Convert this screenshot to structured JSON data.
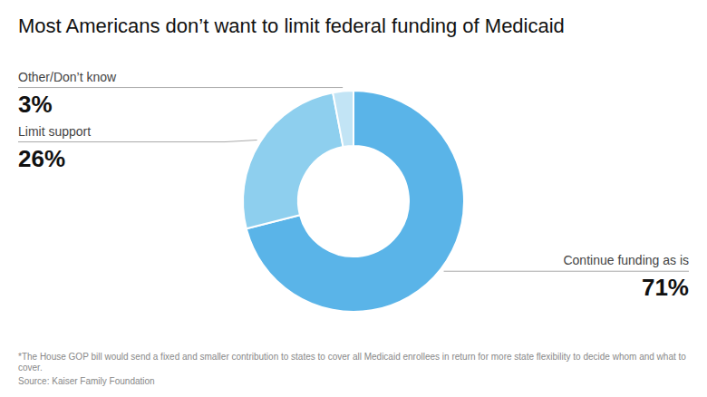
{
  "chart_data": {
    "type": "donut",
    "title": "Most Americans don’t want to limit federal funding of Medicaid",
    "categories": [
      "Continue funding as is",
      "Limit support",
      "Other/Don’t know"
    ],
    "values": [
      71,
      26,
      3
    ],
    "value_labels": [
      "71%",
      "26%",
      "3%"
    ],
    "colors": [
      "#5ab4e8",
      "#8ecfee",
      "#c2e4f5"
    ],
    "data_labels": true,
    "annotations": [
      "*The House GOP bill would send a fixed and smaller contribution to states to cover all Medicaid enrollees in return for more state flexibility to decide whom and what to cover.",
      "Source: Kaiser Family Foundation"
    ]
  }
}
